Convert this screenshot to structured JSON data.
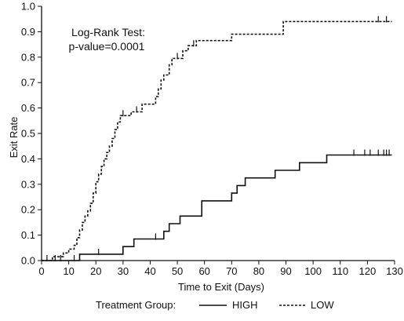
{
  "chart_data": {
    "type": "line",
    "subtype": "kaplan-meier-step",
    "xlabel": "Time to Exit (Days)",
    "ylabel": "Exit Rate",
    "xlim": [
      0,
      130
    ],
    "ylim": [
      0,
      1.0
    ],
    "x_ticks": [
      0,
      10,
      20,
      30,
      40,
      50,
      60,
      70,
      80,
      90,
      100,
      110,
      120,
      130
    ],
    "y_ticks": [
      "0.0",
      "0.1",
      "0.2",
      "0.3",
      "0.4",
      "0.5",
      "0.6",
      "0.7",
      "0.8",
      "0.9",
      "1.0"
    ],
    "grid": false,
    "annotation": {
      "line1": "Log-Rank Test:",
      "line2": "p-value=0.0001"
    },
    "legend": {
      "title": "Treatment Group:",
      "placement": "bottom"
    },
    "series": [
      {
        "name": "HIGH",
        "style": "solid",
        "color": "#111111",
        "steps": [
          [
            0,
            0.0
          ],
          [
            14,
            0.025
          ],
          [
            30,
            0.055
          ],
          [
            34,
            0.085
          ],
          [
            45,
            0.115
          ],
          [
            47,
            0.145
          ],
          [
            51,
            0.175
          ],
          [
            59,
            0.235
          ],
          [
            70,
            0.265
          ],
          [
            72,
            0.295
          ],
          [
            75,
            0.325
          ],
          [
            86,
            0.355
          ],
          [
            95,
            0.385
          ],
          [
            105,
            0.415
          ],
          [
            129,
            0.415
          ]
        ],
        "censored": [
          [
            2,
            0.0
          ],
          [
            5,
            0.0
          ],
          [
            7,
            0.0
          ],
          [
            12,
            0.0
          ],
          [
            21,
            0.025
          ],
          [
            42,
            0.085
          ],
          [
            115,
            0.415
          ],
          [
            119,
            0.415
          ],
          [
            121,
            0.415
          ],
          [
            124,
            0.415
          ],
          [
            126,
            0.415
          ],
          [
            127,
            0.415
          ],
          [
            128,
            0.415
          ]
        ]
      },
      {
        "name": "LOW",
        "style": "dashed",
        "color": "#111111",
        "steps": [
          [
            0,
            0.0
          ],
          [
            4,
            0.015
          ],
          [
            8,
            0.03
          ],
          [
            10,
            0.045
          ],
          [
            12,
            0.06
          ],
          [
            13,
            0.09
          ],
          [
            14,
            0.12
          ],
          [
            15,
            0.15
          ],
          [
            16,
            0.175
          ],
          [
            17,
            0.195
          ],
          [
            18,
            0.225
          ],
          [
            19,
            0.265
          ],
          [
            20,
            0.31
          ],
          [
            21,
            0.34
          ],
          [
            22,
            0.37
          ],
          [
            23,
            0.4
          ],
          [
            24,
            0.425
          ],
          [
            25,
            0.45
          ],
          [
            26,
            0.48
          ],
          [
            27,
            0.515
          ],
          [
            28,
            0.545
          ],
          [
            29,
            0.57
          ],
          [
            33,
            0.585
          ],
          [
            37,
            0.615
          ],
          [
            42,
            0.645
          ],
          [
            43,
            0.675
          ],
          [
            44,
            0.71
          ],
          [
            45,
            0.73
          ],
          [
            47,
            0.77
          ],
          [
            48,
            0.795
          ],
          [
            52,
            0.825
          ],
          [
            54,
            0.845
          ],
          [
            57,
            0.865
          ],
          [
            70,
            0.89
          ],
          [
            89,
            0.94
          ],
          [
            129,
            0.94
          ]
        ],
        "censored": [
          [
            30,
            0.57
          ],
          [
            35,
            0.585
          ],
          [
            50,
            0.795
          ],
          [
            56,
            0.845
          ],
          [
            124,
            0.94
          ],
          [
            127,
            0.94
          ]
        ]
      }
    ]
  }
}
